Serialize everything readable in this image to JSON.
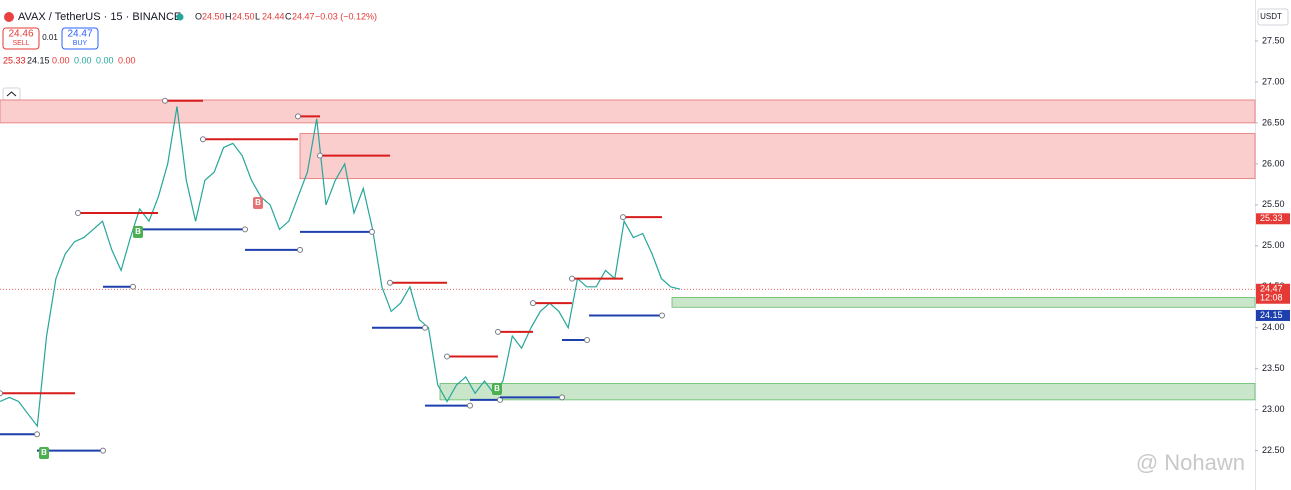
{
  "header": {
    "symbol": "AVAX / TetherUS · 15 · BINANCE",
    "ohlc": [
      {
        "k": "O",
        "v": "24.50"
      },
      {
        "k": "H",
        "v": "24.50"
      },
      {
        "k": "L",
        "v": "24.44"
      },
      {
        "k": "C",
        "v": "24.47"
      }
    ],
    "change": "−0.03 (−0.12%)",
    "sell_price": "24.46",
    "sell": "SELL",
    "spread": "0.01",
    "buy_price": "24.47",
    "buy": "BUY",
    "indicator": [
      "25.33",
      "24.15",
      "0.00",
      "0.00",
      "0.00",
      "0.00"
    ],
    "currency": "USDT",
    "watermark": "@ Nohawn"
  },
  "chart_data": {
    "type": "line",
    "series": [
      {
        "name": "AVAX / TetherUS",
        "color": "#26a69a",
        "values": [
          23.1,
          23.15,
          23.1,
          22.95,
          22.8,
          23.9,
          24.6,
          24.9,
          25.05,
          25.1,
          25.2,
          25.3,
          24.95,
          24.7,
          25.1,
          25.45,
          25.3,
          25.6,
          26.0,
          26.7,
          25.8,
          25.3,
          25.8,
          25.9,
          26.2,
          26.25,
          26.1,
          25.8,
          25.6,
          25.5,
          25.2,
          25.3,
          25.6,
          25.9,
          26.55,
          25.5,
          25.8,
          26.0,
          25.4,
          25.7,
          25.2,
          24.5,
          24.2,
          24.3,
          24.5,
          24.1,
          24.0,
          23.3,
          23.1,
          23.3,
          23.4,
          23.2,
          23.35,
          23.2,
          23.35,
          23.9,
          23.75,
          24.0,
          24.2,
          24.3,
          24.2,
          24.0,
          24.6,
          24.5,
          24.5,
          24.7,
          24.6,
          25.3,
          25.1,
          25.15,
          24.9,
          24.6,
          24.5,
          24.47
        ]
      }
    ],
    "ylim": [
      22.02,
      28.0
    ],
    "yticks": [
      {
        "value": 27.5,
        "label": "27.50"
      },
      {
        "value": 27.0,
        "label": "27.00"
      },
      {
        "value": 26.5,
        "label": "26.50"
      },
      {
        "value": 26.0,
        "label": "26.00"
      },
      {
        "value": 25.5,
        "label": "25.50"
      },
      {
        "value": 25.0,
        "label": "25.00"
      },
      {
        "value": 24.5,
        "label": "24.50"
      },
      {
        "value": 24.0,
        "label": "24.00"
      },
      {
        "value": 23.5,
        "label": "23.50"
      },
      {
        "value": 23.0,
        "label": "23.00"
      },
      {
        "value": 22.5,
        "label": "22.50"
      }
    ],
    "resistance_color": "#d81b1b",
    "support_color": "#1e3fae",
    "resistance_levels": [
      23.2,
      25.4,
      26.77,
      26.3,
      26.58,
      26.1,
      24.55,
      23.65,
      23.95,
      24.3,
      24.6,
      25.35
    ],
    "support_levels": [
      22.7,
      22.5,
      24.5,
      25.2,
      24.95,
      25.17,
      24.0,
      23.05,
      23.12,
      23.15,
      23.85,
      24.15
    ],
    "supply_zones": [
      [
        26.5,
        26.78
      ],
      [
        25.82,
        26.37
      ]
    ],
    "supply_color": "#f8a5a5",
    "demand_zones": [
      [
        24.25,
        24.37
      ],
      [
        23.12,
        23.32
      ]
    ],
    "demand_color": "#a5d6a7",
    "annotations": [
      "B",
      "B",
      "B",
      "B"
    ],
    "price_labels": [
      {
        "value": 25.33,
        "color": "#e53935"
      },
      {
        "value": 24.47,
        "color": "#e53935"
      },
      {
        "value": 24.15,
        "color": "#1e3fae"
      }
    ],
    "countdown": "12:08"
  }
}
